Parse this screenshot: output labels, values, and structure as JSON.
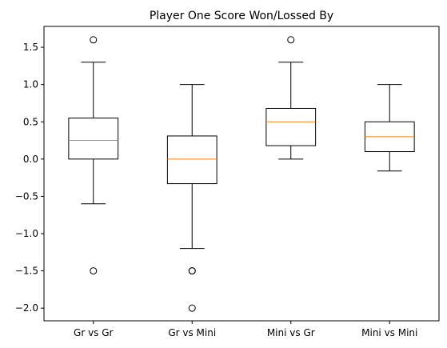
{
  "chart_data": {
    "type": "boxplot",
    "title": "Player One Score Won/Lossed By",
    "xlabel": "",
    "ylabel": "",
    "ylim": [
      -2.17,
      1.78
    ],
    "yticks": [
      -2.0,
      -1.5,
      -1.0,
      -0.5,
      0.0,
      0.5,
      1.0,
      1.5
    ],
    "ytick_labels": [
      "−2.0",
      "−1.5",
      "−1.0",
      "−0.5",
      "0.0",
      "0.5",
      "1.0",
      "1.5"
    ],
    "categories": [
      "Gr vs Gr",
      "Gr vs Mini",
      "Mini vs Gr",
      "Mini vs Mini"
    ],
    "boxes": [
      {
        "whisker_low": -0.6,
        "q1": 0.0,
        "median": 0.25,
        "q3": 0.55,
        "whisker_high": 1.3,
        "outliers": [
          1.6,
          -1.5
        ]
      },
      {
        "whisker_low": -1.2,
        "q1": -0.33,
        "median": 0.0,
        "q3": 0.31,
        "whisker_high": 1.0,
        "outliers": [
          -1.5,
          -1.5,
          -2.0
        ]
      },
      {
        "whisker_low": 0.0,
        "q1": 0.18,
        "median": 0.5,
        "q3": 0.68,
        "whisker_high": 1.3,
        "outliers": [
          1.6
        ]
      },
      {
        "whisker_low": -0.16,
        "q1": 0.1,
        "median": 0.3,
        "q3": 0.5,
        "whisker_high": 1.0,
        "outliers": []
      }
    ],
    "colors": {
      "box": "#000000",
      "median": "#ff7f0e",
      "outlier": "#000000"
    },
    "grid": false,
    "legend": "none"
  }
}
